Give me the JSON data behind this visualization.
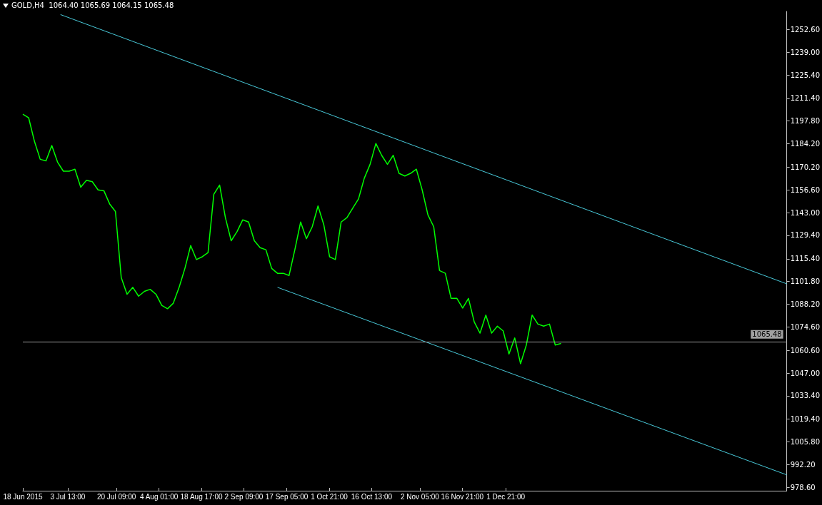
{
  "chart_data": {
    "type": "line",
    "title": "GOLD,H4  1064.40 1065.69 1064.15 1065.48",
    "xlim": [
      "2015-06-18",
      "2016-03-08"
    ],
    "xticks": [
      {
        "value": "2015-06-18",
        "label": "18 Jun 2015"
      },
      {
        "value": "2015-07-03T13:00",
        "label": "3 Jul 13:00"
      },
      {
        "value": "2015-07-20T09:00",
        "label": "20 Jul 09:00"
      },
      {
        "value": "2015-08-04T01:00",
        "label": "4 Aug 01:00"
      },
      {
        "value": "2015-08-18T17:00",
        "label": "18 Aug 17:00"
      },
      {
        "value": "2015-09-02T09:00",
        "label": "2 Sep 09:00"
      },
      {
        "value": "2015-09-17T05:00",
        "label": "17 Sep 05:00"
      },
      {
        "value": "2015-10-01T21:00",
        "label": "1 Oct 21:00"
      },
      {
        "value": "2015-10-16T13:00",
        "label": "16 Oct 13:00"
      },
      {
        "value": "2015-11-02T05:00",
        "label": "2 Nov 05:00"
      },
      {
        "value": "2015-11-16T21:00",
        "label": "16 Nov 21:00"
      },
      {
        "value": "2015-12-01T21:00",
        "label": "1 Dec 21:00"
      }
    ],
    "ylim": [
      976.6,
      1263.4
    ],
    "yticks": [
      {
        "value": 978.6,
        "label": "978.60"
      },
      {
        "value": 992.2,
        "label": "992.20"
      },
      {
        "value": 1005.8,
        "label": "1005.80"
      },
      {
        "value": 1019.4,
        "label": "1019.40"
      },
      {
        "value": 1033.4,
        "label": "1033.40"
      },
      {
        "value": 1047,
        "label": "1047.00"
      },
      {
        "value": 1060.6,
        "label": "1060.60"
      },
      {
        "value": 1074.6,
        "label": "1074.60"
      },
      {
        "value": 1088.2,
        "label": "1088.20"
      },
      {
        "value": 1101.8,
        "label": "1101.80"
      },
      {
        "value": 1115.4,
        "label": "1115.40"
      },
      {
        "value": 1129.4,
        "label": "1129.40"
      },
      {
        "value": 1143,
        "label": "1143.00"
      },
      {
        "value": 1156.6,
        "label": "1156.60"
      },
      {
        "value": 1170.2,
        "label": "1170.20"
      },
      {
        "value": 1184.2,
        "label": "1184.20"
      },
      {
        "value": 1197.8,
        "label": "1197.80"
      },
      {
        "value": 1211.4,
        "label": "1211.40"
      },
      {
        "value": 1225.4,
        "label": "1225.40"
      },
      {
        "value": 1239,
        "label": "1239.00"
      },
      {
        "value": 1252.6,
        "label": "1252.60"
      }
    ],
    "grid": false,
    "marker": "none",
    "line_style": "solid",
    "ref_lines": [
      {
        "axis": "y",
        "value": 1065.48,
        "label": "1065.48",
        "color": "#a0a0a0"
      }
    ],
    "series": [
      {
        "color": "#00ff00",
        "x": [
          "2015-06-18",
          "2015-06-20",
          "2015-06-22",
          "2015-06-24",
          "2015-06-26",
          "2015-06-28",
          "2015-06-30",
          "2015-07-02",
          "2015-07-04",
          "2015-07-06",
          "2015-07-08",
          "2015-07-10",
          "2015-07-12",
          "2015-07-14",
          "2015-07-16",
          "2015-07-18",
          "2015-07-20",
          "2015-07-22",
          "2015-07-24",
          "2015-07-26",
          "2015-07-28",
          "2015-07-30",
          "2015-08-01",
          "2015-08-03",
          "2015-08-05",
          "2015-08-07",
          "2015-08-09",
          "2015-08-11",
          "2015-08-13",
          "2015-08-15",
          "2015-08-17",
          "2015-08-19",
          "2015-08-21",
          "2015-08-23",
          "2015-08-25",
          "2015-08-27",
          "2015-08-29",
          "2015-08-31",
          "2015-09-02",
          "2015-09-04",
          "2015-09-06",
          "2015-09-08",
          "2015-09-10",
          "2015-09-12",
          "2015-09-14",
          "2015-09-16",
          "2015-09-18",
          "2015-09-20",
          "2015-09-22",
          "2015-09-24",
          "2015-09-26",
          "2015-09-28",
          "2015-09-30",
          "2015-10-02",
          "2015-10-04",
          "2015-10-06",
          "2015-10-08",
          "2015-10-10",
          "2015-10-12",
          "2015-10-14",
          "2015-10-16",
          "2015-10-18",
          "2015-10-20",
          "2015-10-22",
          "2015-10-24",
          "2015-10-26",
          "2015-10-28",
          "2015-10-30",
          "2015-11-01",
          "2015-11-03",
          "2015-11-05",
          "2015-11-07",
          "2015-11-09",
          "2015-11-11",
          "2015-11-13",
          "2015-11-15",
          "2015-11-17",
          "2015-11-19",
          "2015-11-21",
          "2015-11-23",
          "2015-11-25",
          "2015-11-27",
          "2015-11-29",
          "2015-12-01",
          "2015-12-03",
          "2015-12-05",
          "2015-12-07",
          "2015-12-09",
          "2015-12-11",
          "2015-12-13",
          "2015-12-15",
          "2015-12-17",
          "2015-12-19",
          "2015-12-21"
        ],
        "values": [
          1201.9,
          1199.8,
          1185.7,
          1174.9,
          1174.0,
          1183.2,
          1173.2,
          1167.8,
          1167.8,
          1169.0,
          1158.2,
          1162.4,
          1161.5,
          1156.6,
          1156.1,
          1148.2,
          1143.7,
          1104.2,
          1094.2,
          1098.3,
          1093.0,
          1095.9,
          1097.1,
          1094.2,
          1087.5,
          1085.5,
          1088.8,
          1098.3,
          1109.6,
          1123.3,
          1114.9,
          1116.6,
          1119.1,
          1154.0,
          1159.5,
          1140.0,
          1126.2,
          1131.6,
          1138.7,
          1137.4,
          1126.2,
          1122.0,
          1120.8,
          1109.6,
          1106.7,
          1106.7,
          1105.4,
          1120.8,
          1137.4,
          1127.4,
          1134.5,
          1147.0,
          1135.8,
          1116.6,
          1114.9,
          1137.4,
          1140.0,
          1145.7,
          1151.2,
          1163.6,
          1171.9,
          1184.4,
          1177.3,
          1171.9,
          1177.3,
          1166.5,
          1164.9,
          1166.5,
          1169.0,
          1156.6,
          1141.6,
          1134.5,
          1108.3,
          1106.7,
          1091.7,
          1091.7,
          1085.9,
          1091.7,
          1077.6,
          1070.9,
          1081.7,
          1070.9,
          1075.1,
          1072.2,
          1058.4,
          1068.0,
          1052.6,
          1063.8,
          1081.7,
          1076.3,
          1075.1,
          1076.3,
          1063.8,
          1064.7
        ]
      },
      {
        "color": "#48c8d8",
        "x": [
          "2015-07-01",
          "2016-03-08"
        ],
        "values": [
          1261.5,
          1100.4
        ]
      },
      {
        "color": "#48c8d8",
        "x": [
          "2015-09-14",
          "2016-03-08"
        ],
        "values": [
          1098.3,
          986.1
        ]
      }
    ]
  }
}
